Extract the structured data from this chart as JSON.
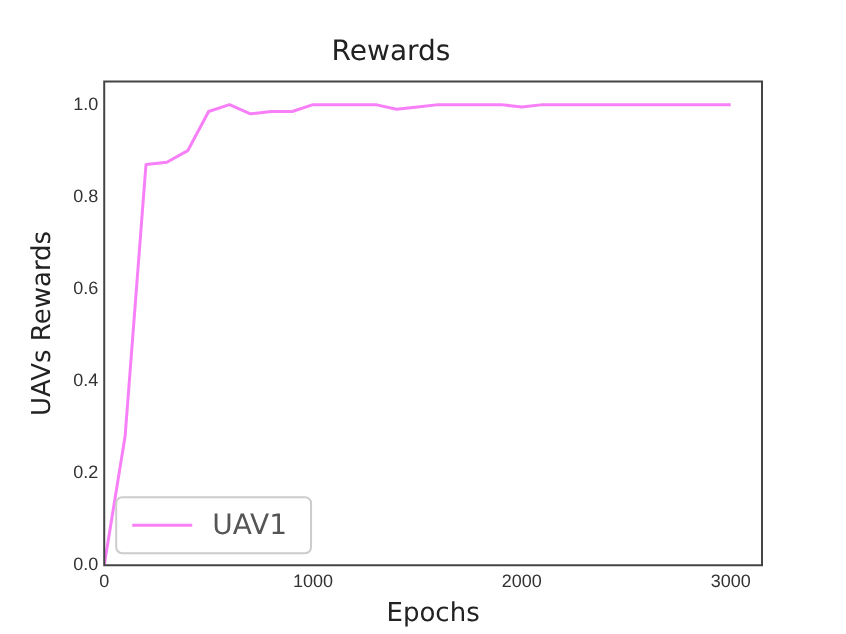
{
  "chart_data": {
    "type": "line",
    "title": "Rewards",
    "xlabel": "Epochs",
    "ylabel": "UAVs Rewards",
    "x": [
      0,
      100,
      200,
      300,
      400,
      500,
      600,
      700,
      800,
      900,
      1000,
      1100,
      1200,
      1300,
      1400,
      1500,
      1600,
      1700,
      1800,
      1900,
      2000,
      2100,
      2200,
      2300,
      2400,
      2500,
      2600,
      2700,
      2800,
      2900,
      3000
    ],
    "series": [
      {
        "name": "UAV1",
        "color": "#f77ff7",
        "values": [
          0.0,
          0.28,
          0.87,
          0.875,
          0.9,
          0.985,
          1.0,
          0.98,
          0.985,
          0.985,
          1.0,
          1.0,
          1.0,
          1.0,
          0.99,
          0.995,
          1.0,
          1.0,
          1.0,
          1.0,
          0.995,
          1.0,
          1.0,
          1.0,
          1.0,
          1.0,
          1.0,
          1.0,
          1.0,
          1.0,
          1.0
        ]
      }
    ],
    "xlim": [
      0,
      3150
    ],
    "xticks": [
      0,
      1000,
      2000,
      3000
    ],
    "ylim": [
      0,
      1.05
    ],
    "yticks": [
      {
        "value": 0,
        "label": "0.0"
      },
      {
        "value": 0.2,
        "label": "0.2"
      },
      {
        "value": 0.4,
        "label": "0.4"
      },
      {
        "value": 0.6,
        "label": "0.6"
      },
      {
        "value": 0.8,
        "label": "0.8"
      },
      {
        "value": 1.0,
        "label": "1.0"
      }
    ],
    "legend": "bottom left",
    "grid": false,
    "marker": "none",
    "line_style": "solid"
  }
}
